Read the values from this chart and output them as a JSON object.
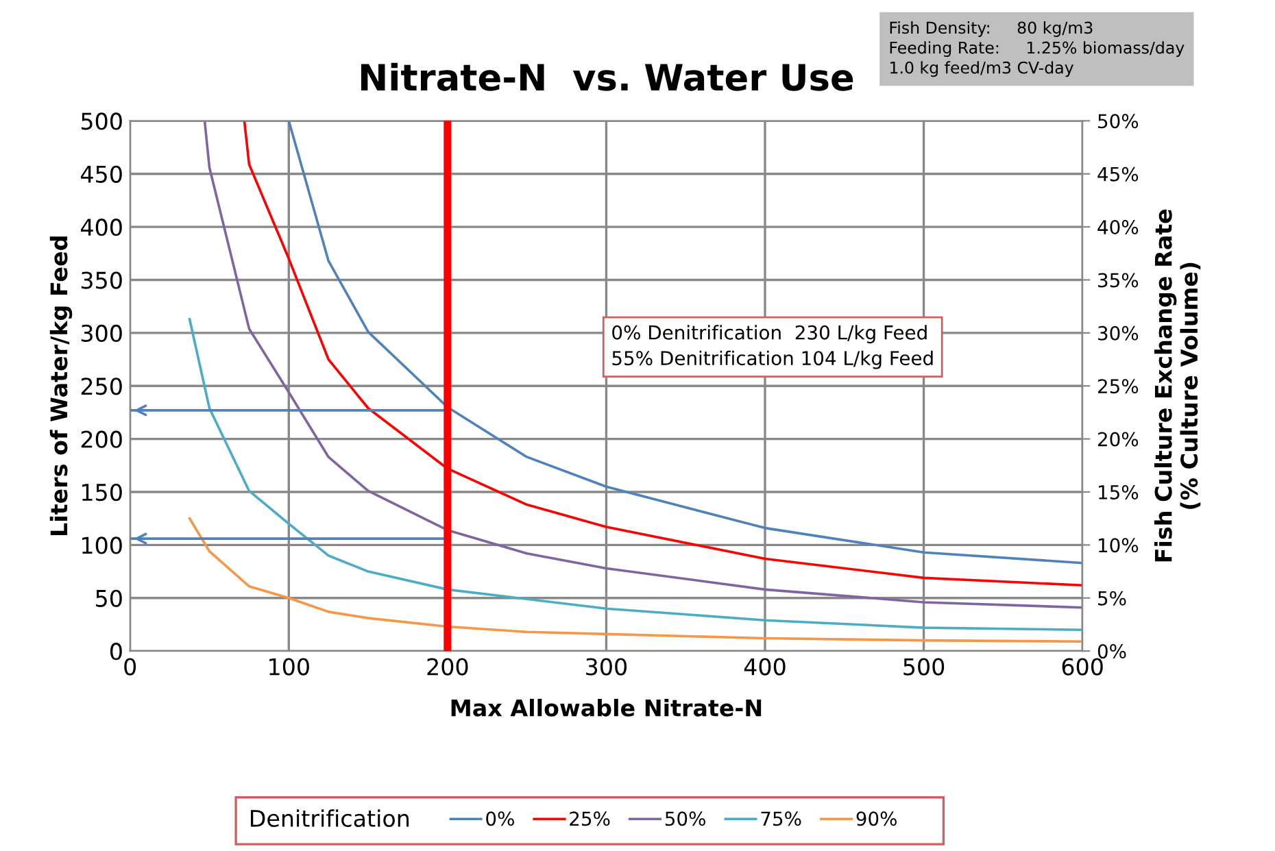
{
  "chart_data": {
    "type": "line",
    "title": "Nitrate-N  vs. Water Use",
    "xlabel": "Max Allowable Nitrate-N",
    "ylabel": "Liters of Water/kg Feed",
    "y2label": "Fish Culture Exchange Rate\n(% Culture Volume)",
    "legend_title": "Denitrification",
    "series": [
      {
        "name": "0%",
        "color": "#4f81bd",
        "x": [
          100,
          125,
          150,
          200,
          250,
          300,
          400,
          500,
          600
        ],
        "values": [
          500,
          368,
          301,
          230,
          183,
          155,
          116,
          93,
          83
        ]
      },
      {
        "name": "25%",
        "color": "#ff0000",
        "x": [
          72,
          75,
          100,
          125,
          150,
          200,
          250,
          300,
          400,
          500,
          600
        ],
        "values": [
          500,
          459,
          370,
          275,
          229,
          172,
          138,
          117,
          87,
          69,
          62
        ]
      },
      {
        "name": "50%",
        "color": "#8064a2",
        "x": [
          47,
          50,
          75,
          100,
          125,
          150,
          200,
          250,
          300,
          400,
          500,
          600
        ],
        "values": [
          500,
          456,
          304,
          244,
          183,
          151,
          114,
          92,
          78,
          58,
          46,
          41
        ]
      },
      {
        "name": "75%",
        "color": "#4bacc6",
        "x": [
          37.5,
          50,
          75,
          100,
          125,
          150,
          200,
          300,
          400,
          500,
          600
        ],
        "values": [
          313,
          229,
          151,
          120,
          90,
          75,
          58,
          40,
          29,
          22,
          20
        ]
      },
      {
        "name": "90%",
        "color": "#f79646",
        "x": [
          37.5,
          50,
          75,
          100,
          125,
          150,
          200,
          250,
          300,
          400,
          500,
          600
        ],
        "values": [
          125,
          94,
          61,
          50,
          37,
          31,
          23,
          18,
          16,
          12,
          10,
          9
        ]
      },
      {
        "color": "#4f81bd",
        "x": [
          0,
          200
        ],
        "values": [
          227,
          227
        ]
      },
      {
        "color": "#4f81bd",
        "x": [
          0,
          200
        ],
        "values": [
          106,
          106
        ]
      }
    ],
    "xlim": [
      0,
      600
    ],
    "xticks": [
      0,
      100,
      200,
      300,
      400,
      500,
      600
    ],
    "ylim": [
      0,
      500
    ],
    "yticks": [
      0,
      50,
      100,
      150,
      200,
      250,
      300,
      350,
      400,
      450,
      500
    ],
    "y2lim": [
      0,
      50
    ],
    "y2ticks": [
      {
        "value": 0,
        "label": "0%"
      },
      {
        "value": 5,
        "label": "5%"
      },
      {
        "value": 10,
        "label": "10%"
      },
      {
        "value": 15,
        "label": "15%"
      },
      {
        "value": 20,
        "label": "20%"
      },
      {
        "value": 25,
        "label": "25%"
      },
      {
        "value": 30,
        "label": "30%"
      },
      {
        "value": 35,
        "label": "35%"
      },
      {
        "value": 40,
        "label": "40%"
      },
      {
        "value": 45,
        "label": "45%"
      },
      {
        "value": 50,
        "label": "50%"
      }
    ],
    "ref_lines": [
      {
        "axis": "x",
        "value": 200,
        "color": "#ff0000"
      }
    ],
    "annotations": [
      "0% Denitrification  230 L/kg Feed",
      "55% Denitrification 104 L/kg Feed",
      "Fish Density:     80 kg/m3",
      "Feeding Rate:     1.25% biomass/day",
      "1.0 kg feed/m3 CV-day"
    ],
    "grid": true,
    "legend": "bottom",
    "marker": "none",
    "line_style": "solid"
  }
}
